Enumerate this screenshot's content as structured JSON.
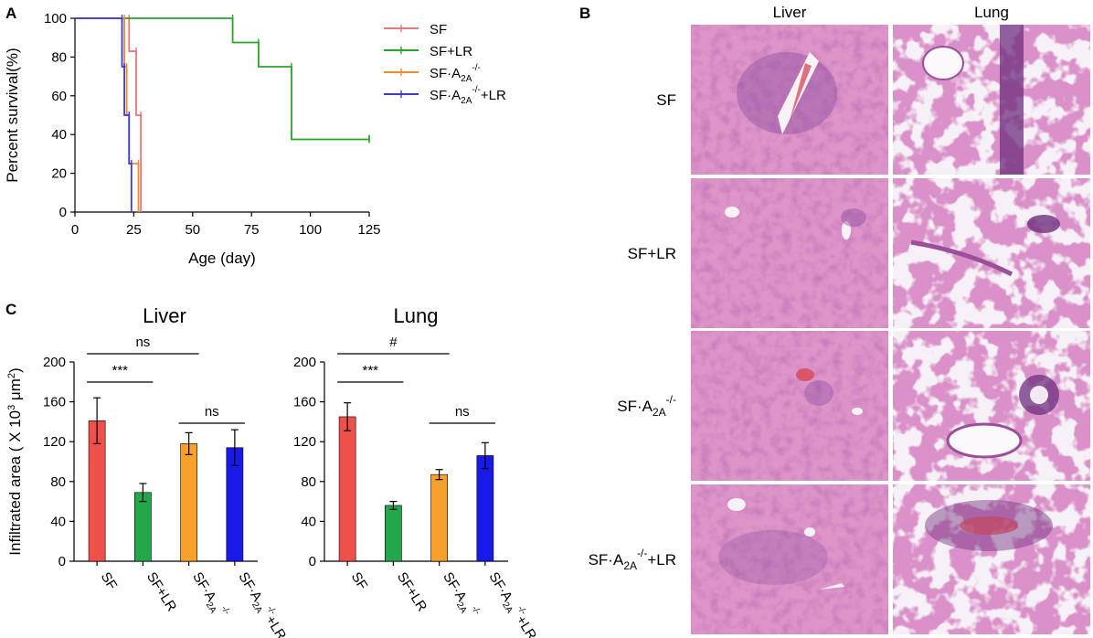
{
  "panels": {
    "A": "A",
    "B": "B",
    "C": "C"
  },
  "colors": {
    "SF": "#e8787a",
    "SF+LR": "#2aa52a",
    "SF·A2A-/-": "#f08c2a",
    "SF·A2A-/-+LR": "#3b3bd6",
    "bar_SF": "#f0504a",
    "bar_SFLR": "#22a84a",
    "bar_A2A": "#f7a02c",
    "bar_A2ALR": "#1a1ae8"
  },
  "panel_b": {
    "col_headers": [
      "Liver",
      "Lung"
    ],
    "row_labels": [
      {
        "main": "SF",
        "sub": "",
        "sup": "",
        "tail": ""
      },
      {
        "main": "SF+LR",
        "sub": "",
        "sup": "",
        "tail": ""
      },
      {
        "main": "SF·A",
        "sub": "2A",
        "sup": "-/-",
        "tail": ""
      },
      {
        "main": "SF·A",
        "sub": "2A",
        "sup": "-/-",
        "tail": "+LR"
      }
    ],
    "images": [
      "liver-SF",
      "lung-SF",
      "liver-SF+LR",
      "lung-SF+LR",
      "liver-SF·A2A-/-",
      "lung-SF·A2A-/-",
      "liver-SF·A2A-/-+LR",
      "lung-SF·A2A-/-+LR"
    ]
  },
  "chart_data": [
    {
      "type": "line",
      "subtype": "kaplan-meier",
      "xlabel": "Age (day)",
      "ylabel": "Percent survival(%)",
      "xlim": [
        0,
        125
      ],
      "ylim": [
        0,
        100
      ],
      "xticks": [
        0,
        25,
        50,
        75,
        100,
        125
      ],
      "yticks": [
        0,
        20,
        40,
        60,
        80,
        100
      ],
      "legend_position": "top-right",
      "legend": [
        {
          "main": "SF",
          "sub": "",
          "sup": "",
          "tail": ""
        },
        {
          "main": "SF+LR",
          "sub": "",
          "sup": "",
          "tail": ""
        },
        {
          "main": "SF·A",
          "sub": "2A",
          "sup": "-/-",
          "tail": ""
        },
        {
          "main": "SF·A",
          "sub": "2A",
          "sup": "-/-",
          "tail": "+LR"
        }
      ],
      "series": [
        {
          "key": "SF",
          "steps": [
            [
              0,
              100
            ],
            [
              23,
              100
            ],
            [
              23,
              83
            ],
            [
              26,
              83
            ],
            [
              26,
              50
            ],
            [
              28,
              50
            ],
            [
              28,
              0
            ]
          ]
        },
        {
          "key": "SF+LR",
          "steps": [
            [
              0,
              100
            ],
            [
              67,
              100
            ],
            [
              67,
              87.5
            ],
            [
              78,
              87.5
            ],
            [
              78,
              75
            ],
            [
              92,
              75
            ],
            [
              92,
              37.5
            ],
            [
              125,
              37.5
            ]
          ],
          "censor_end": true
        },
        {
          "key": "SF·A2A-/-",
          "steps": [
            [
              0,
              100
            ],
            [
              21,
              100
            ],
            [
              21,
              75
            ],
            [
              22,
              75
            ],
            [
              22,
              50
            ],
            [
              23,
              50
            ],
            [
              23,
              25
            ],
            [
              27,
              25
            ],
            [
              27,
              0
            ]
          ]
        },
        {
          "key": "SF·A2A-/-+LR",
          "steps": [
            [
              0,
              100
            ],
            [
              20,
              100
            ],
            [
              20,
              75
            ],
            [
              21,
              75
            ],
            [
              21,
              50
            ],
            [
              23,
              50
            ],
            [
              23,
              25
            ],
            [
              24,
              25
            ],
            [
              24,
              0
            ]
          ]
        }
      ]
    },
    {
      "type": "bar",
      "title": "Liver",
      "ylabel_main": "Infiltrated area ( X 10",
      "ylabel_sup1": "3",
      "ylabel_mid": " μm",
      "ylabel_sup2": "2",
      "ylabel_end": ")",
      "ylim": [
        0,
        200
      ],
      "yticks": [
        0,
        40,
        80,
        120,
        160,
        200
      ],
      "categories": [
        {
          "main": "SF",
          "sub": "",
          "sup": "",
          "tail": ""
        },
        {
          "main": "SF+LR",
          "sub": "",
          "sup": "",
          "tail": ""
        },
        {
          "main": "SF·A",
          "sub": "2A",
          "sup": "-/-",
          "tail": ""
        },
        {
          "main": "SF·A",
          "sub": "2A",
          "sup": "-/-",
          "tail": "+LR"
        }
      ],
      "values": [
        141,
        69,
        118,
        114
      ],
      "errors": [
        23,
        9,
        11,
        18
      ],
      "significance": [
        {
          "pair": [
            0,
            2
          ],
          "label": "ns",
          "level": 1
        },
        {
          "pair": [
            0,
            1
          ],
          "label": "***",
          "level": 0
        },
        {
          "pair": [
            2,
            3
          ],
          "label": "ns",
          "level": 0
        }
      ]
    },
    {
      "type": "bar",
      "title": "Lung",
      "ylim": [
        0,
        200
      ],
      "yticks": [
        0,
        40,
        80,
        120,
        160,
        200
      ],
      "categories": [
        {
          "main": "SF",
          "sub": "",
          "sup": "",
          "tail": ""
        },
        {
          "main": "SF+LR",
          "sub": "",
          "sup": "",
          "tail": ""
        },
        {
          "main": "SF·A",
          "sub": "2A",
          "sup": "-/-",
          "tail": ""
        },
        {
          "main": "SF·A",
          "sub": "2A",
          "sup": "-/-",
          "tail": "+LR"
        }
      ],
      "values": [
        145,
        56,
        87,
        106
      ],
      "errors": [
        14,
        4,
        5,
        13
      ],
      "significance": [
        {
          "pair": [
            0,
            2
          ],
          "label": "#",
          "level": 1
        },
        {
          "pair": [
            0,
            1
          ],
          "label": "***",
          "level": 0
        },
        {
          "pair": [
            2,
            3
          ],
          "label": "ns",
          "level": 0
        }
      ]
    }
  ]
}
